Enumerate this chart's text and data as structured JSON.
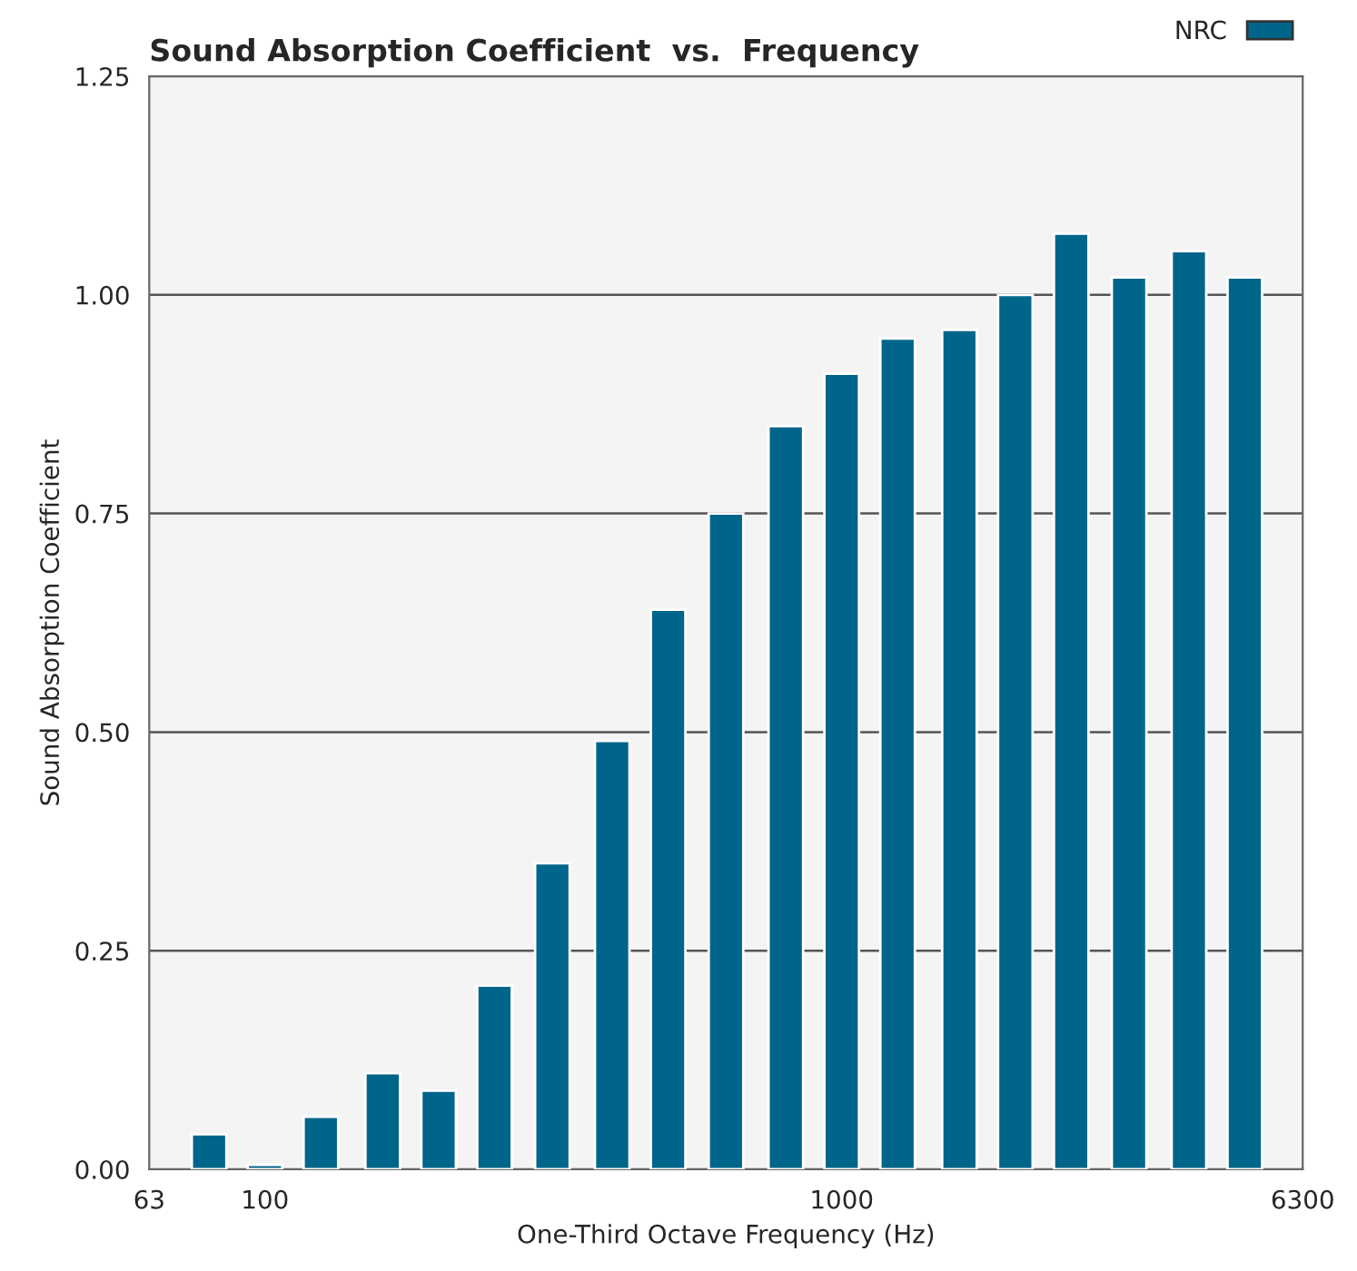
{
  "chart_data": {
    "type": "bar",
    "title": "Sound Absorption Coefficient  vs.  Frequency",
    "xlabel": "One-Third Octave Frequency (Hz)",
    "ylabel": "Sound Absorption Coefficient",
    "x": [
      80,
      100,
      125,
      160,
      200,
      250,
      315,
      400,
      500,
      630,
      800,
      1000,
      1250,
      1600,
      2000,
      2500,
      3150,
      4000,
      5000
    ],
    "series": [
      {
        "name": "NRC",
        "color": "#00658a",
        "values": [
          0.04,
          0.005,
          0.06,
          0.11,
          0.09,
          0.21,
          0.35,
          0.49,
          0.64,
          0.75,
          0.85,
          0.91,
          0.95,
          0.96,
          1.0,
          1.07,
          1.02,
          1.05,
          1.02
        ]
      }
    ],
    "log": "x",
    "xlim": [
      63,
      6300
    ],
    "xticks": [
      63,
      100,
      1000,
      6300
    ],
    "ylim": [
      0,
      1.25
    ],
    "yticks": [
      {
        "value": 0,
        "label": "0.00"
      },
      {
        "value": 0.25,
        "label": "0.25"
      },
      {
        "value": 0.5,
        "label": "0.50"
      },
      {
        "value": 0.75,
        "label": "0.75"
      },
      {
        "value": 1.0,
        "label": "1.00"
      },
      {
        "value": 1.25,
        "label": "1.25"
      }
    ],
    "grid": "y",
    "legend": "top right"
  }
}
